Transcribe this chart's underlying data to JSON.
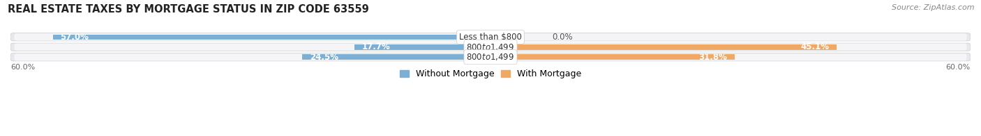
{
  "title": "REAL ESTATE TAXES BY MORTGAGE STATUS IN ZIP CODE 63559",
  "source": "Source: ZipAtlas.com",
  "rows": [
    {
      "label": "Less than $800",
      "without_mortgage": 57.0,
      "with_mortgage": 0.0
    },
    {
      "label": "$800 to $1,499",
      "without_mortgage": 17.7,
      "with_mortgage": 45.1
    },
    {
      "label": "$800 to $1,499",
      "without_mortgage": 24.5,
      "with_mortgage": 31.8
    }
  ],
  "xlim": 60.0,
  "color_without": "#7BAFD4",
  "color_with": "#F0A864",
  "color_without_light": "#B8D4E8",
  "color_with_light": "#F5C99A",
  "bar_height": 0.52,
  "row_bg_color": "#E8E8EC",
  "row_bg_inner": "#F5F5F8",
  "axis_label_bottom_left": "60.0%",
  "axis_label_bottom_right": "60.0%",
  "legend_without": "Without Mortgage",
  "legend_with": "With Mortgage",
  "title_fontsize": 10.5,
  "source_fontsize": 8,
  "label_fontsize": 8.5,
  "value_fontsize": 8.5,
  "tick_fontsize": 8
}
